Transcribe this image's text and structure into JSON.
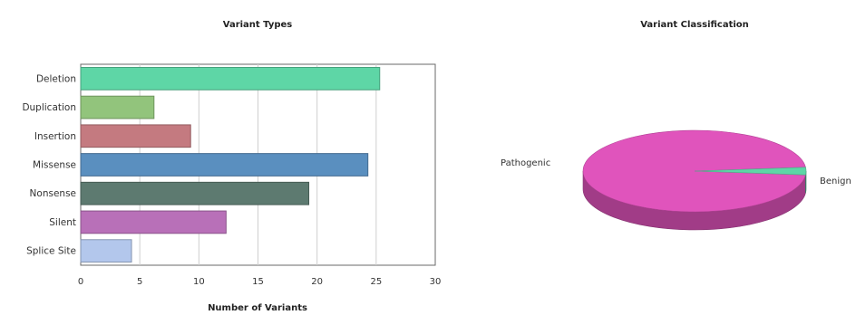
{
  "chart_data": [
    {
      "type": "bar",
      "orientation": "horizontal",
      "title": "Variant Types",
      "xlabel": "Number of Variants",
      "ylabel": "",
      "categories": [
        "Deletion",
        "Duplication",
        "Insertion",
        "Missense",
        "Nonsense",
        "Silent",
        "Splice Site"
      ],
      "values": [
        25.3,
        6.2,
        9.3,
        24.3,
        19.3,
        12.3,
        4.3
      ],
      "colors": [
        "#5ed6a6",
        "#92c47c",
        "#c47a80",
        "#5a8fbf",
        "#5d7a70",
        "#b870b8",
        "#b3c7ec"
      ],
      "xlim": [
        0,
        30
      ],
      "xticks": [
        "0",
        "5",
        "10",
        "15",
        "20",
        "25",
        "30"
      ],
      "grid": true
    },
    {
      "type": "pie",
      "style": "3d",
      "title": "Variant Classification",
      "labels": [
        "Pathogenic",
        "Benign"
      ],
      "values": [
        97,
        3
      ],
      "colors": [
        "#e054bc",
        "#5ed6a6"
      ]
    }
  ]
}
